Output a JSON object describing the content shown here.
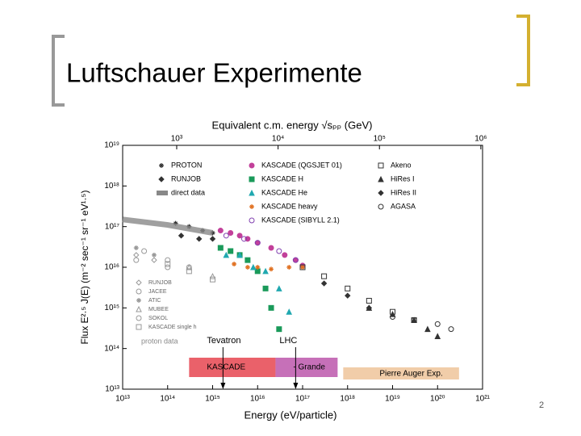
{
  "title": "Luftschauer Experimente",
  "page_number": "2",
  "chart_data": {
    "type": "scatter",
    "x_label": "Energy (eV/particle)",
    "x2_label": "Equivalent c.m. energy √sₚₚ (GeV)",
    "y_label": "Flux E²·⁵ J(E) (m⁻² sec⁻¹ sr⁻¹ eV¹·⁵)",
    "log_x": true,
    "log_y": true,
    "xlim": [
      10000000000000.0,
      1e+21
    ],
    "ylim": [
      10000000000000.0,
      1e+19
    ],
    "x2lim": [
      293,
      1040000
    ],
    "xticks": [
      {
        "value": 10000000000000.0,
        "label": "10¹³"
      },
      {
        "value": 100000000000000.0,
        "label": "10¹⁴"
      },
      {
        "value": 1000000000000000.0,
        "label": "10¹⁵"
      },
      {
        "value": 1e+16,
        "label": "10¹⁶"
      },
      {
        "value": 1e+17,
        "label": "10¹⁷"
      },
      {
        "value": 1e+18,
        "label": "10¹⁸"
      },
      {
        "value": 1e+19,
        "label": "10¹⁹"
      },
      {
        "value": 1e+20,
        "label": "10²⁰"
      },
      {
        "value": 1e+21,
        "label": "10²¹"
      }
    ],
    "x2ticks": [
      {
        "value": 1000,
        "label": "10³"
      },
      {
        "value": 10000,
        "label": "10⁴"
      },
      {
        "value": 100000,
        "label": "10⁵"
      },
      {
        "value": 1000000,
        "label": "10⁶"
      }
    ],
    "yticks": [
      {
        "value": 10000000000000.0,
        "label": "10¹³"
      },
      {
        "value": 100000000000000.0,
        "label": "10¹⁴"
      },
      {
        "value": 1000000000000000.0,
        "label": "10¹⁵"
      },
      {
        "value": 1e+16,
        "label": "10¹⁶"
      },
      {
        "value": 1e+17,
        "label": "10¹⁷"
      },
      {
        "value": 1e+18,
        "label": "10¹⁸"
      },
      {
        "value": 1e+19,
        "label": "10¹⁹"
      }
    ],
    "series": [
      {
        "name": "PROTON",
        "color": "#333333",
        "marker": "star",
        "filled": true,
        "x": [
          150000000000000.0,
          300000000000000.0,
          600000000000000.0,
          1000000000000000.0
        ],
        "values": [
          1.2e+17,
          1e+17,
          8e+16,
          7e+16
        ]
      },
      {
        "name": "RUNJOB",
        "color": "#333333",
        "marker": "diamond",
        "filled": true,
        "x": [
          200000000000000.0,
          500000000000000.0,
          1000000000000000.0
        ],
        "values": [
          6e+16,
          5e+16,
          5e+16
        ]
      },
      {
        "name": "direct data",
        "color": "#888888",
        "marker": "band",
        "filled": true,
        "x": [
          10000000000000.0,
          100000000000000.0,
          1000000000000000.0
        ],
        "values": [
          1.5e+17,
          1.1e+17,
          7e+16
        ]
      },
      {
        "name": "KASCADE (QGSJET 01)",
        "color": "#c2409a",
        "marker": "circle",
        "filled": true,
        "x": [
          1500000000000000.0,
          2500000000000000.0,
          4000000000000000.0,
          6000000000000000.0,
          1e+16,
          2e+16,
          4e+16,
          7e+16,
          1e+17
        ],
        "values": [
          8e+16,
          7e+16,
          6e+16,
          5e+16,
          4e+16,
          3e+16,
          2e+16,
          1.5e+16,
          1.1e+16
        ]
      },
      {
        "name": "KASCADE H",
        "color": "#1a9a5a",
        "marker": "square",
        "filled": true,
        "x": [
          1500000000000000.0,
          2500000000000000.0,
          4000000000000000.0,
          6000000000000000.0,
          1e+16,
          1.5e+16,
          2e+16,
          3e+16
        ],
        "values": [
          3e+16,
          2.5e+16,
          2e+16,
          1.5e+16,
          8000000000000000.0,
          3000000000000000.0,
          1000000000000000.0,
          300000000000000.0
        ]
      },
      {
        "name": "KASCADE He",
        "color": "#20a8b0",
        "marker": "triangle",
        "filled": true,
        "x": [
          2000000000000000.0,
          4000000000000000.0,
          8000000000000000.0,
          1.5e+16,
          3e+16,
          5e+16
        ],
        "values": [
          2e+16,
          2e+16,
          1e+16,
          8000000000000000.0,
          3000000000000000.0,
          800000000000000.0
        ]
      },
      {
        "name": "KASCADE heavy",
        "color": "#e07020",
        "marker": "star",
        "filled": true,
        "x": [
          3000000000000000.0,
          6000000000000000.0,
          1e+16,
          2e+16,
          5e+16,
          1e+17
        ],
        "values": [
          1.2e+16,
          1e+16,
          1e+16,
          9000000000000000.0,
          1e+16,
          1e+16
        ]
      },
      {
        "name": "KASCADE (SIBYLL 2.1)",
        "color": "#8040b0",
        "marker": "circle",
        "filled": false,
        "x": [
          2000000000000000.0,
          5000000000000000.0,
          1e+16,
          3e+16,
          7e+16
        ],
        "values": [
          6e+16,
          5e+16,
          4e+16,
          2.5e+16,
          1.5e+16
        ]
      },
      {
        "name": "Akeno",
        "color": "#333333",
        "marker": "square",
        "filled": false,
        "x": [
          1e+17,
          3e+17,
          1e+18,
          3e+18,
          1e+19,
          3e+19
        ],
        "values": [
          1e+16,
          6000000000000000.0,
          3000000000000000.0,
          1500000000000000.0,
          800000000000000.0,
          500000000000000.0
        ]
      },
      {
        "name": "HiRes I",
        "color": "#333333",
        "marker": "triangle",
        "filled": true,
        "x": [
          3e+18,
          1e+19,
          3e+19,
          6e+19,
          1e+20
        ],
        "values": [
          1000000000000000.0,
          700000000000000.0,
          500000000000000.0,
          300000000000000.0,
          200000000000000.0
        ]
      },
      {
        "name": "HiRes II",
        "color": "#333333",
        "marker": "diamond",
        "filled": true,
        "x": [
          3e+17,
          1e+18,
          3e+18
        ],
        "values": [
          4000000000000000.0,
          2000000000000000.0,
          1000000000000000.0
        ]
      },
      {
        "name": "AGASA",
        "color": "#333333",
        "marker": "circle",
        "filled": false,
        "x": [
          1e+19,
          3e+19,
          1e+20,
          2e+20
        ],
        "values": [
          600000000000000.0,
          500000000000000.0,
          400000000000000.0,
          300000000000000.0
        ]
      },
      {
        "name": "RUNJOB",
        "color": "#999999",
        "marker": "diamond",
        "filled": false,
        "x": [
          20000000000000.0,
          50000000000000.0
        ],
        "values": [
          2e+16,
          1.5e+16
        ]
      },
      {
        "name": "JACEE",
        "color": "#999999",
        "marker": "circle",
        "filled": false,
        "x": [
          30000000000000.0,
          100000000000000.0,
          300000000000000.0
        ],
        "values": [
          2.5e+16,
          1.5e+16,
          1e+16
        ]
      },
      {
        "name": "ATIC",
        "color": "#999999",
        "marker": "star",
        "filled": false,
        "x": [
          20000000000000.0,
          50000000000000.0
        ],
        "values": [
          3e+16,
          2e+16
        ]
      },
      {
        "name": "MUBEE",
        "color": "#999999",
        "marker": "triangle",
        "filled": false,
        "x": [
          300000000000000.0,
          1000000000000000.0
        ],
        "values": [
          1e+16,
          6000000000000000.0
        ]
      },
      {
        "name": "SOKOL",
        "color": "#999999",
        "marker": "circle",
        "filled": false,
        "x": [
          20000000000000.0,
          100000000000000.0
        ],
        "values": [
          1.5e+16,
          1e+16
        ]
      },
      {
        "name": "KASCADE single h",
        "color": "#999999",
        "marker": "square",
        "filled": false,
        "x": [
          100000000000000.0,
          300000000000000.0,
          1000000000000000.0
        ],
        "values": [
          1.2e+16,
          8000000000000000.0,
          5000000000000000.0
        ]
      }
    ],
    "proton_data_label": "proton data",
    "annotations": [
      {
        "text": "Tevatron",
        "x": 1700000000000000.0
      },
      {
        "text": "LHC",
        "x": 7e+16
      }
    ],
    "bands": [
      {
        "label": "KASCADE",
        "from": 300000000000000.0,
        "to": 2.5e+16,
        "color": "#e8505a"
      },
      {
        "label": "- Grande",
        "from": 2.5e+16,
        "to": 6e+17,
        "color": "#c060b0"
      },
      {
        "label": "Pierre Auger Exp.",
        "from": 8e+17,
        "to": 3e+20,
        "color": "#f0c8a0"
      }
    ]
  }
}
